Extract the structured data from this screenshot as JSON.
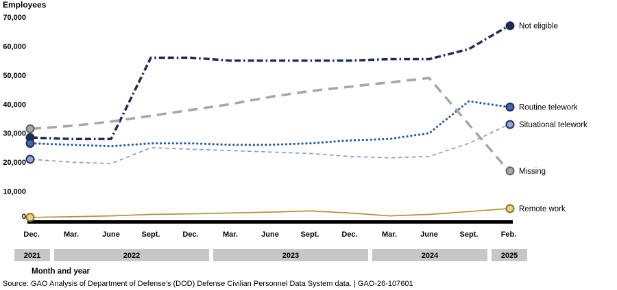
{
  "title": "Employees",
  "axis": {
    "x_axis_label": "Month and year",
    "y_ticks": [
      "0",
      "10,000",
      "20,000",
      "30,000",
      "40,000",
      "50,000",
      "60,000",
      "70,000"
    ],
    "x_ticks": [
      "Dec.",
      "Mar.",
      "June",
      "Sept.",
      "Dec.",
      "Mar.",
      "June",
      "Sept.",
      "Dec.",
      "Mar.",
      "June",
      "Sept.",
      "Feb."
    ],
    "year_bands": [
      {
        "label": "2021",
        "first_tick": 0,
        "last_tick": 0
      },
      {
        "label": "2022",
        "first_tick": 1,
        "last_tick": 4
      },
      {
        "label": "2023",
        "first_tick": 5,
        "last_tick": 8
      },
      {
        "label": "2024",
        "first_tick": 9,
        "last_tick": 11
      },
      {
        "label": "2025",
        "first_tick": 12,
        "last_tick": 12
      }
    ],
    "band_color": "#c7c7c7"
  },
  "source": "Source: GAO Analysis of Department of Defense's (DOD) Defense Civilian Personnel Data System data.  |  GAO-26-107601",
  "chart_data": {
    "type": "line",
    "title": "Employees",
    "xlabel": "Month and year",
    "ylabel": "Employees",
    "ylim": [
      0,
      70000
    ],
    "grid": false,
    "legend_position": "right-of-line-ends",
    "x": [
      "Dec. 2021",
      "Mar. 2022",
      "June 2022",
      "Sept. 2022",
      "Dec. 2022",
      "Mar. 2023",
      "June 2023",
      "Sept. 2023",
      "Dec. 2023",
      "Mar. 2024",
      "June 2024",
      "Sept. 2024",
      "Feb. 2025"
    ],
    "series": [
      {
        "name": "Not eligible",
        "style": "dash-dot",
        "line_color": "#202c52",
        "marker_fill": "#202c52",
        "marker_ring": "#202c52",
        "values": [
          28500,
          28000,
          28000,
          56000,
          56000,
          55000,
          55000,
          55000,
          55000,
          55500,
          55500,
          59000,
          67000
        ]
      },
      {
        "name": "Routine telework",
        "style": "dotted",
        "line_color": "#2d5b9b",
        "marker_fill": "#3f68ab",
        "marker_ring": "#202c52",
        "values": [
          26500,
          26000,
          25500,
          26500,
          26500,
          26000,
          26000,
          26500,
          27500,
          28000,
          30000,
          41000,
          39000
        ]
      },
      {
        "name": "Situational telework",
        "style": "dashed-small",
        "line_color": "#8796cb",
        "marker_fill": "#96a6d8",
        "marker_ring": "#202c52",
        "values": [
          21000,
          20000,
          19500,
          25000,
          24500,
          24000,
          23500,
          23000,
          22000,
          21500,
          22000,
          26500,
          33000
        ]
      },
      {
        "name": "Missing",
        "style": "dashed-long",
        "line_color": "#a7a7a7",
        "marker_fill": "#a8a8a8",
        "marker_ring": "#606060",
        "values": [
          31500,
          32500,
          34000,
          36000,
          38000,
          40000,
          42500,
          44500,
          46000,
          47500,
          49000,
          33000,
          17000
        ]
      },
      {
        "name": "Remote work",
        "style": "solid",
        "line_color": "#b0923b",
        "marker_fill": "#ebd096",
        "marker_ring": "#8a7420",
        "values": [
          1000,
          1200,
          1500,
          2000,
          2200,
          2500,
          2800,
          3200,
          2500,
          1500,
          2000,
          3000,
          4000
        ]
      }
    ]
  }
}
